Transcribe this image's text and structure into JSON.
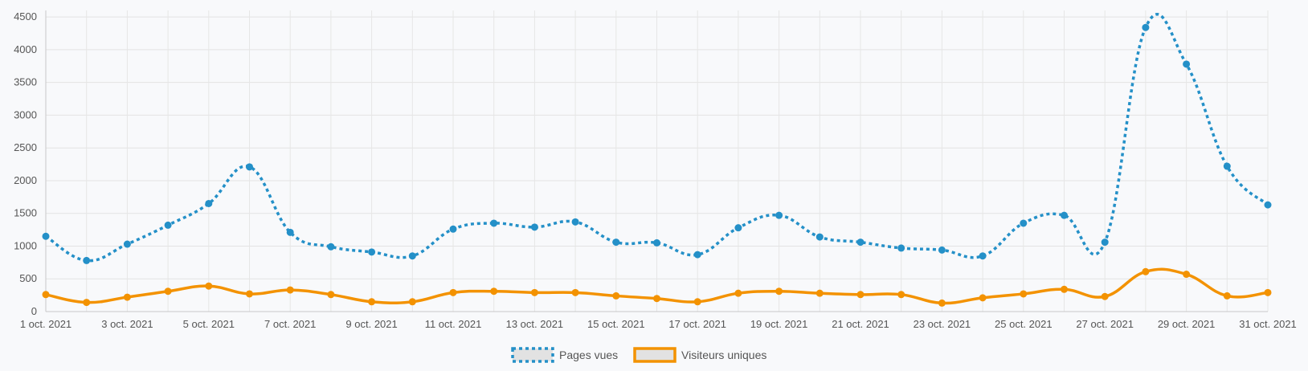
{
  "chart_data": {
    "type": "line",
    "x": [
      "1 oct. 2021",
      "2 oct. 2021",
      "3 oct. 2021",
      "4 oct. 2021",
      "5 oct. 2021",
      "6 oct. 2021",
      "7 oct. 2021",
      "8 oct. 2021",
      "9 oct. 2021",
      "10 oct. 2021",
      "11 oct. 2021",
      "12 oct. 2021",
      "13 oct. 2021",
      "14 oct. 2021",
      "15 oct. 2021",
      "16 oct. 2021",
      "17 oct. 2021",
      "18 oct. 2021",
      "19 oct. 2021",
      "20 oct. 2021",
      "21 oct. 2021",
      "22 oct. 2021",
      "23 oct. 2021",
      "24 oct. 2021",
      "25 oct. 2021",
      "26 oct. 2021",
      "27 oct. 2021",
      "28 oct. 2021",
      "29 oct. 2021",
      "30 oct. 2021",
      "31 oct. 2021"
    ],
    "x_tick_labels": [
      "1 oct. 2021",
      "3 oct. 2021",
      "5 oct. 2021",
      "7 oct. 2021",
      "9 oct. 2021",
      "11 oct. 2021",
      "13 oct. 2021",
      "15 oct. 2021",
      "17 oct. 2021",
      "19 oct. 2021",
      "21 oct. 2021",
      "23 oct. 2021",
      "25 oct. 2021",
      "27 oct. 2021",
      "29 oct. 2021",
      "31 oct. 2021"
    ],
    "y_ticks": [
      0,
      500,
      1000,
      1500,
      2000,
      2500,
      3000,
      3500,
      4000,
      4500
    ],
    "ylim": [
      0,
      4600
    ],
    "grid": true,
    "legend_position": "bottom",
    "series": [
      {
        "name": "Pages vues",
        "color": "#2490c8",
        "style": "dotted",
        "values": [
          1150,
          780,
          1030,
          1320,
          1650,
          2210,
          1210,
          990,
          910,
          850,
          1260,
          1350,
          1290,
          1370,
          1060,
          1050,
          870,
          1280,
          1470,
          1140,
          1060,
          970,
          940,
          850,
          1350,
          1470,
          1060,
          4340,
          3780,
          2220,
          1630
        ]
      },
      {
        "name": "Visiteurs uniques",
        "color": "#f39200",
        "style": "solid",
        "values": [
          260,
          140,
          220,
          310,
          390,
          270,
          330,
          260,
          150,
          150,
          290,
          310,
          290,
          290,
          240,
          200,
          150,
          280,
          310,
          280,
          260,
          260,
          130,
          210,
          270,
          340,
          230,
          610,
          570,
          240,
          290
        ]
      }
    ]
  }
}
